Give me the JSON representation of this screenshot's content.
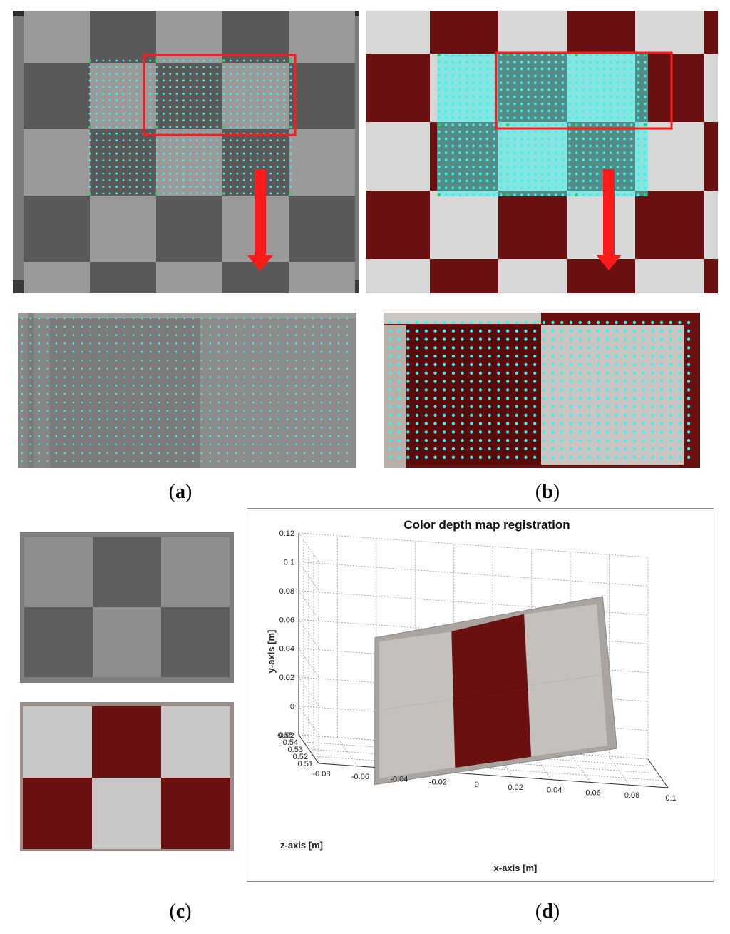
{
  "colors": {
    "dot": "#3ff0ea",
    "dot_edge": "#1fd66a",
    "highlight": "#ff1a1a",
    "maroon": "#6a1010",
    "board_light": "#d8d8d8",
    "ir_dark": "#595959",
    "ir_light": "#9a9a9a"
  },
  "panel_labels": {
    "a": "a",
    "b": "b",
    "c": "c",
    "d": "d"
  },
  "chart_data": {
    "type": "surface",
    "title": "Color depth map registration",
    "xlabel": "x-axis [m]",
    "ylabel": "y-axis [m]",
    "zlabel": "z-axis [m]",
    "x_ticks": [
      "-0.08",
      "-0.06",
      "-0.04",
      "-0.02",
      "0",
      "0.02",
      "0.04",
      "0.06",
      "0.08",
      "0.1"
    ],
    "y_ticks": [
      "-0.02",
      "0",
      "0.02",
      "0.04",
      "0.06",
      "0.08",
      "0.1",
      "0.12"
    ],
    "z_ticks": [
      "0.51",
      "0.52",
      "0.53",
      "0.54",
      "0.55"
    ],
    "xlim": [
      -0.08,
      0.1
    ],
    "ylim": [
      -0.02,
      0.12
    ],
    "zlim": [
      0.51,
      0.55
    ],
    "grid": true
  }
}
